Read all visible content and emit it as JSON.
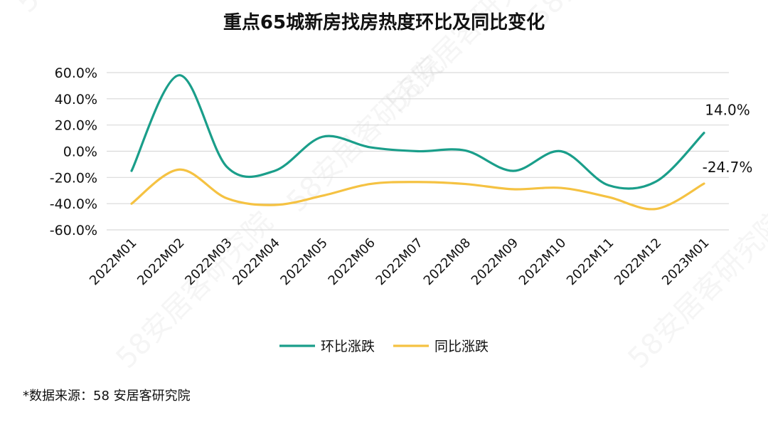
{
  "chart_data": {
    "type": "line",
    "title": "重点65城新房找房热度环比及同比变化",
    "categories": [
      "2022M01",
      "2022M02",
      "2022M03",
      "2022M04",
      "2022M05",
      "2022M06",
      "2022M07",
      "2022M08",
      "2022M09",
      "2022M10",
      "2022M11",
      "2022M12",
      "2023M01"
    ],
    "series": [
      {
        "name": "环比涨跌",
        "color": "#1a9e8a",
        "values": [
          -15.0,
          58.0,
          -12.0,
          -15.0,
          11.0,
          3.0,
          0.0,
          0.5,
          -15.0,
          0.0,
          -26.0,
          -23.0,
          14.0
        ]
      },
      {
        "name": "同比涨跌",
        "color": "#f5c242",
        "values": [
          -40.0,
          -14.0,
          -36.0,
          -41.0,
          -34.0,
          -25.0,
          -23.5,
          -25.0,
          -29.0,
          -28.0,
          -35.0,
          -44.0,
          -24.7
        ]
      }
    ],
    "ylim": [
      -60,
      60
    ],
    "y_ticks": [
      "60.0%",
      "40.0%",
      "20.0%",
      "0.0%",
      "-20.0%",
      "-40.0%",
      "-60.0%"
    ],
    "y_tick_values": [
      60,
      40,
      20,
      0,
      -20,
      -40,
      -60
    ],
    "grid": true,
    "legend_position": "bottom",
    "data_labels": [
      {
        "series": 0,
        "index": 12,
        "text": "14.0%"
      },
      {
        "series": 1,
        "index": 12,
        "text": "-24.7%"
      }
    ],
    "source": "*数据来源：58 安居客研究院",
    "watermark": "58安居客研究院"
  }
}
